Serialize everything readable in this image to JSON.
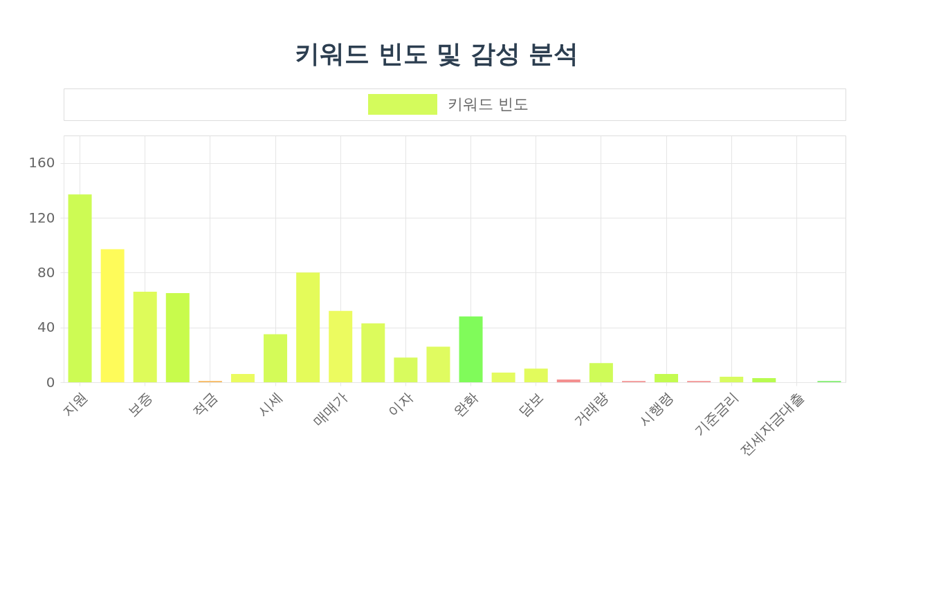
{
  "chart_data": {
    "type": "bar",
    "title": "키워드 빈도 및 감성 분석",
    "categories": [
      "지원",
      null,
      "보증",
      null,
      "적금",
      null,
      "시세",
      null,
      "매매가",
      null,
      "이자",
      null,
      "완화",
      null,
      "담보",
      null,
      "거래량",
      null,
      "시행령",
      null,
      "기준금리",
      null,
      "전세자금대출",
      null
    ],
    "series": [
      {
        "name": "키워드 빈도",
        "color": "#d4fb5c",
        "values": [
          137,
          97,
          66,
          65,
          1,
          6,
          35,
          80,
          52,
          43,
          18,
          26,
          48,
          7,
          10,
          2,
          14,
          1,
          6,
          1,
          4,
          3,
          0,
          1
        ],
        "colors": [
          "#cdfb54",
          "#fefb5a",
          "#defb5a",
          "#c8fb4c",
          "#f8c070",
          "#eafb60",
          "#d4fb58",
          "#e4fb5a",
          "#ecfb60",
          "#dcfb5c",
          "#d8fb5e",
          "#e0fb60",
          "#80fb5a",
          "#e4fb60",
          "#e2fb5c",
          "#f49090",
          "#cffb58",
          "#f4a0a0",
          "#c4fb50",
          "#f4a0a0",
          "#d8fb60",
          "#b8fb50",
          "#f0a0a0",
          "#90f080"
        ]
      }
    ],
    "ylim": [
      0,
      180
    ],
    "yticks": [
      0,
      40,
      80,
      120,
      160
    ],
    "grid": true,
    "legend": "top"
  }
}
